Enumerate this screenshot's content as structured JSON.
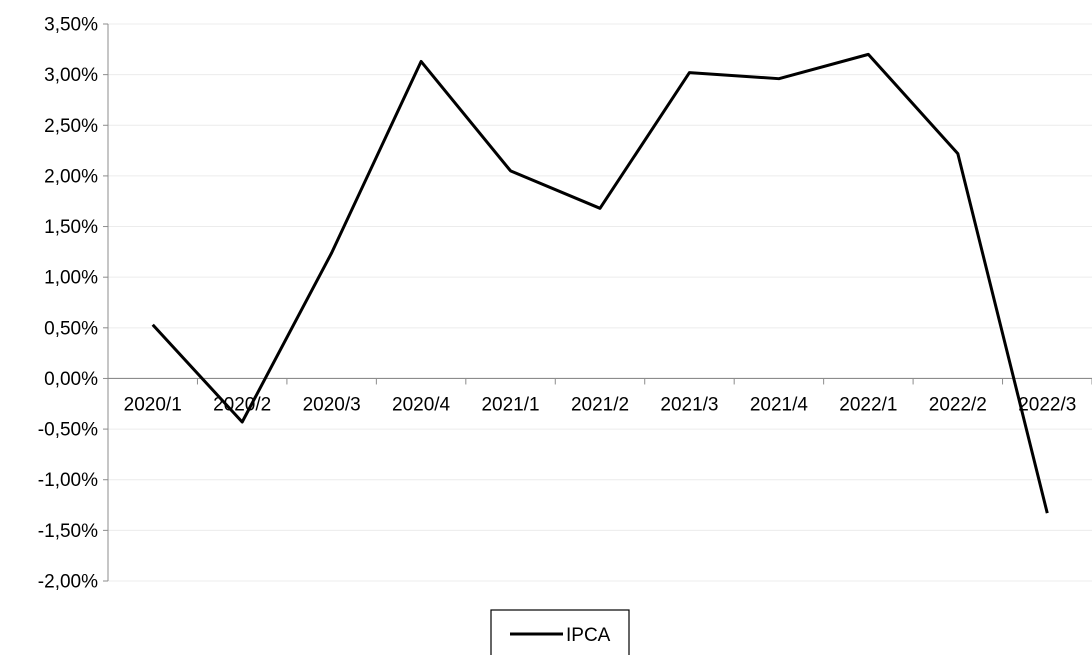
{
  "chart_data": {
    "type": "line",
    "categories": [
      "2020/1",
      "2020/2",
      "2020/3",
      "2020/4",
      "2021/1",
      "2021/2",
      "2021/3",
      "2021/4",
      "2022/1",
      "2022/2",
      "2022/3"
    ],
    "series": [
      {
        "name": "IPCA",
        "values": [
          0.0053,
          -0.0043,
          0.0124,
          0.0313,
          0.0205,
          0.0168,
          0.0302,
          0.0296,
          0.032,
          0.0222,
          -0.0133
        ],
        "color": "#000000"
      }
    ],
    "title": "",
    "xlabel": "",
    "ylabel": "",
    "ylim": [
      -0.02,
      0.035
    ],
    "y_step": 0.005,
    "y_ticks": [
      "3,50%",
      "3,00%",
      "2,50%",
      "2,00%",
      "1,50%",
      "1,00%",
      "0,50%",
      "0,00%",
      "-0,50%",
      "-1,00%",
      "-1,50%",
      "-2,00%"
    ],
    "grid": true,
    "gridline_color": "#ececec",
    "legend": "bottom-center"
  }
}
